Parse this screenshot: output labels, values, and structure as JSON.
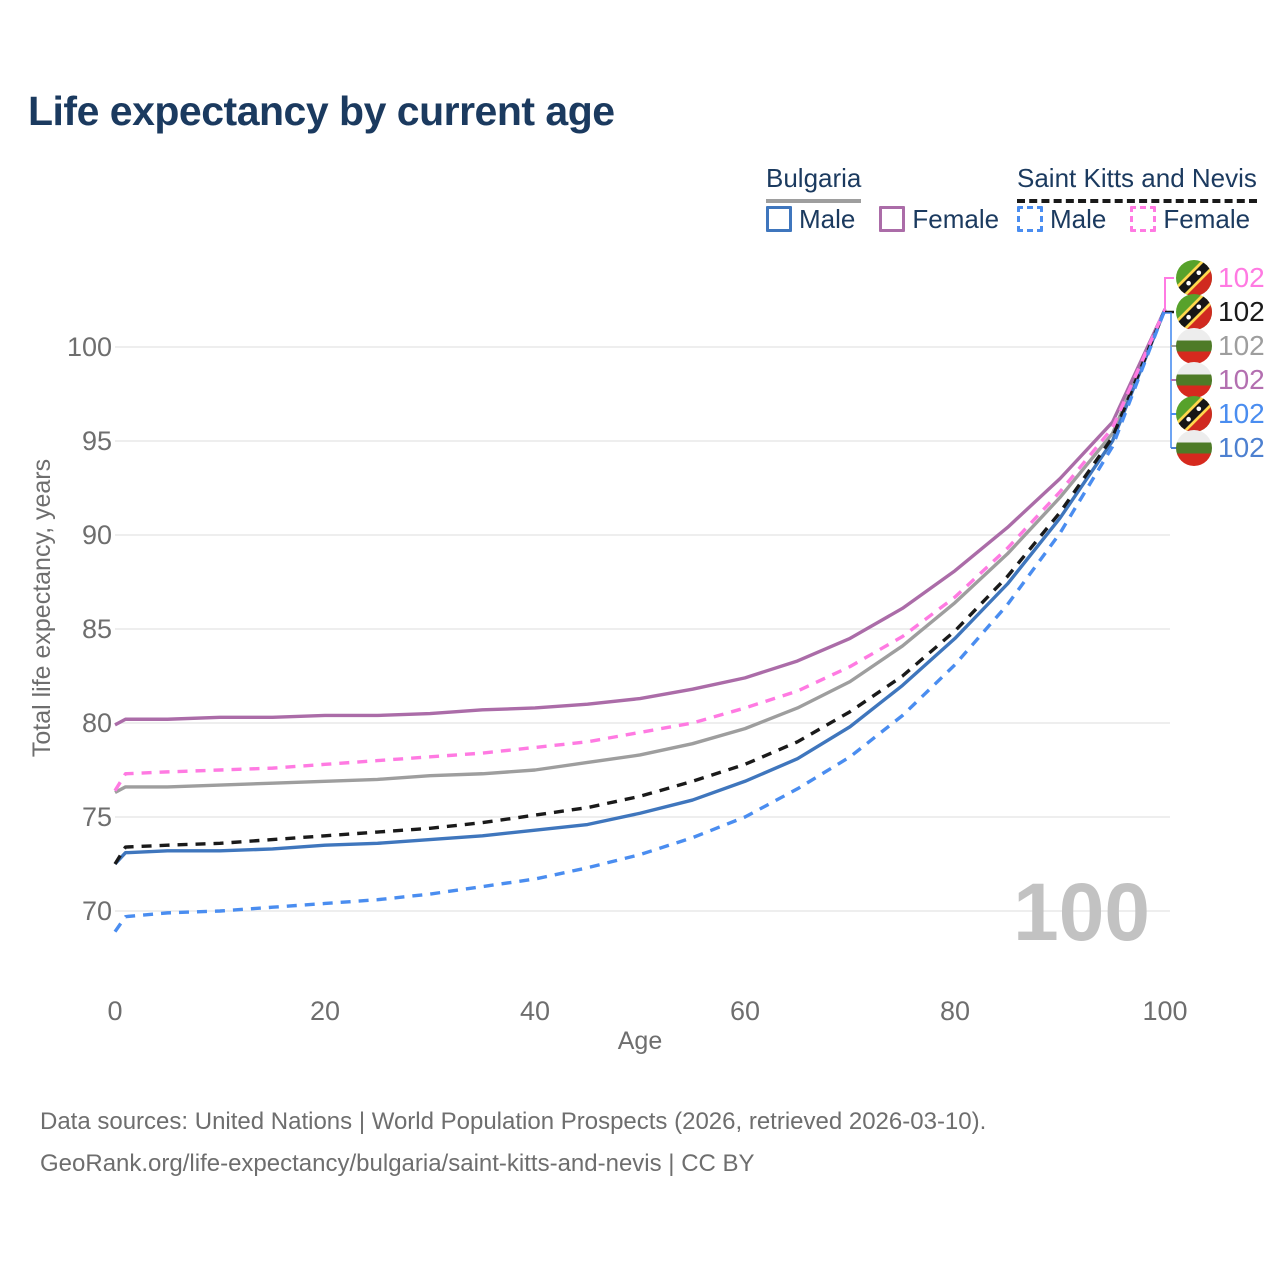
{
  "title": "Life expectancy by current age",
  "legend": {
    "groups": [
      {
        "label": "Bulgaria",
        "line_style": "solid",
        "items": [
          {
            "label": "Male"
          },
          {
            "label": "Female"
          }
        ]
      },
      {
        "label": "Saint Kitts and Nevis",
        "line_style": "dashed",
        "items": [
          {
            "label": "Male"
          },
          {
            "label": "Female"
          }
        ]
      }
    ]
  },
  "chart_data": {
    "type": "line",
    "title": "Life expectancy by current age",
    "xlabel": "Age",
    "ylabel": "Total life expectancy, years",
    "xlim": [
      0,
      100
    ],
    "ylim": [
      67.5,
      103
    ],
    "x_ticks": [
      0,
      20,
      40,
      60,
      80,
      100
    ],
    "y_ticks": [
      70,
      75,
      80,
      85,
      90,
      95,
      100
    ],
    "grid": "horizontal",
    "legend_position": "top-right",
    "hover_age_indicator": "100",
    "x": [
      0,
      1,
      5,
      10,
      15,
      20,
      25,
      30,
      35,
      40,
      45,
      50,
      55,
      60,
      65,
      70,
      75,
      80,
      85,
      90,
      95,
      100
    ],
    "series": [
      {
        "key": "bulgaria-total",
        "name": "Bulgaria",
        "sex": "Both sexes",
        "color": "#9e9e9e",
        "style": "solid",
        "end_label": "102",
        "values": [
          76.3,
          76.6,
          76.6,
          76.7,
          76.8,
          76.9,
          77.0,
          77.2,
          77.3,
          77.5,
          77.9,
          78.3,
          78.9,
          79.7,
          80.8,
          82.2,
          84.1,
          86.4,
          89.0,
          92.0,
          95.4,
          102
        ]
      },
      {
        "key": "bulgaria-female",
        "name": "Bulgaria",
        "sex": "Female",
        "color": "#ab6ca8",
        "style": "solid",
        "end_label": "102",
        "values": [
          79.9,
          80.2,
          80.2,
          80.3,
          80.3,
          80.4,
          80.4,
          80.5,
          80.7,
          80.8,
          81.0,
          81.3,
          81.8,
          82.4,
          83.3,
          84.5,
          86.1,
          88.1,
          90.4,
          93.0,
          96.0,
          102
        ]
      },
      {
        "key": "bulgaria-male",
        "name": "Bulgaria",
        "sex": "Male",
        "color": "#3f76bd",
        "style": "solid",
        "end_label": "102",
        "values": [
          72.5,
          73.1,
          73.2,
          73.2,
          73.3,
          73.5,
          73.6,
          73.8,
          74.0,
          74.3,
          74.6,
          75.2,
          75.9,
          76.9,
          78.1,
          79.8,
          82.0,
          84.5,
          87.4,
          90.9,
          95.0,
          102
        ]
      },
      {
        "key": "saint-kitts-and-nevis-total",
        "name": "Saint Kitts and Nevis",
        "sex": "Both sexes",
        "color": "#1a1a1a",
        "style": "dashed",
        "end_label": "102",
        "values": [
          72.5,
          73.4,
          73.5,
          73.6,
          73.8,
          74.0,
          74.2,
          74.4,
          74.7,
          75.1,
          75.5,
          76.1,
          76.9,
          77.8,
          79.0,
          80.6,
          82.5,
          84.9,
          87.8,
          91.2,
          95.2,
          102
        ]
      },
      {
        "key": "saint-kitts-and-nevis-female",
        "name": "Saint Kitts and Nevis",
        "sex": "Female",
        "color": "#ff7ae2",
        "style": "dashed",
        "end_label": "102",
        "values": [
          76.4,
          77.3,
          77.4,
          77.5,
          77.6,
          77.8,
          78.0,
          78.2,
          78.4,
          78.7,
          79.0,
          79.5,
          80.0,
          80.8,
          81.7,
          83.0,
          84.6,
          86.7,
          89.3,
          92.3,
          95.7,
          102
        ]
      },
      {
        "key": "saint-kitts-and-nevis-male",
        "name": "Saint Kitts and Nevis",
        "sex": "Male",
        "color": "#4a8df0",
        "style": "dashed",
        "end_label": "102",
        "values": [
          68.9,
          69.7,
          69.9,
          70.0,
          70.2,
          70.4,
          70.6,
          70.9,
          71.3,
          71.7,
          72.3,
          73.0,
          73.9,
          75.0,
          76.5,
          78.2,
          80.4,
          83.1,
          86.3,
          90.1,
          94.7,
          102
        ]
      }
    ]
  },
  "end_labels": [
    {
      "flag": "saint-kitts-and-nevis",
      "series": "saint-kitts-and-nevis-female",
      "value": "102",
      "color": "#ff7ae2"
    },
    {
      "flag": "saint-kitts-and-nevis",
      "series": "saint-kitts-and-nevis-total",
      "value": "102",
      "color": "#1a1a1a"
    },
    {
      "flag": "bulgaria",
      "series": "bulgaria-total",
      "value": "102",
      "color": "#9e9e9e"
    },
    {
      "flag": "bulgaria",
      "series": "bulgaria-female",
      "value": "102",
      "color": "#b36fb0"
    },
    {
      "flag": "saint-kitts-and-nevis",
      "series": "saint-kitts-and-nevis-male",
      "value": "102",
      "color": "#4a8df0"
    },
    {
      "flag": "bulgaria",
      "series": "bulgaria-male",
      "value": "102",
      "color": "#4d80d0"
    }
  ],
  "watermark": "100",
  "footer": {
    "line1": "Data sources: United Nations | World Population Prospects (2026, retrieved 2026-03-10).",
    "line2": "GeoRank.org/life-expectancy/bulgaria/saint-kitts-and-nevis | CC BY"
  }
}
